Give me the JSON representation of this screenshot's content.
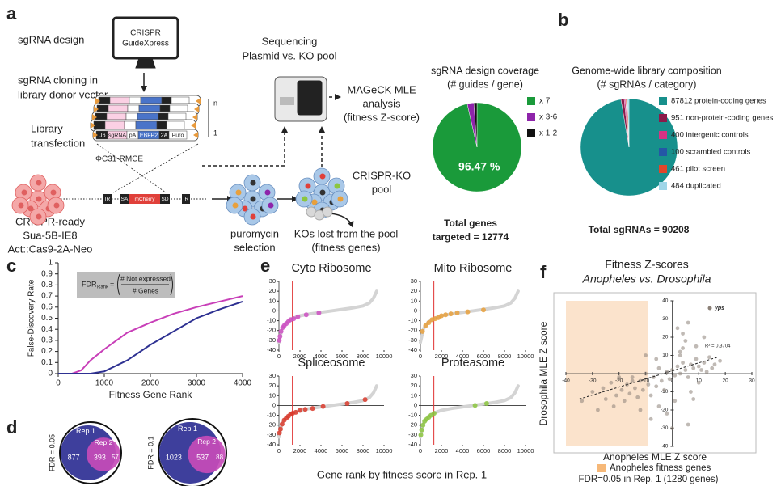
{
  "panel_labels": [
    "a",
    "b",
    "c",
    "d",
    "e",
    "f"
  ],
  "diagram": {
    "design": "sgRNA design",
    "software": [
      "CRISPR",
      "GuideXpress"
    ],
    "cloning": [
      "sgRNA cloning in",
      "library donor vector"
    ],
    "transfection": [
      "Library",
      "transfection"
    ],
    "rmce": "ΦC31-RMCE",
    "cell_line": [
      "CRISPR-ready",
      "Sua-5B-IE8",
      "Act::Cas9-2A-Neo"
    ],
    "selection": [
      "puromycin",
      "selection"
    ],
    "sequencing": [
      "Sequencing",
      "Plasmid vs. KO pool"
    ],
    "analysis": [
      "MAGeCK MLE",
      "analysis",
      "(fitness Z-score)"
    ],
    "pool": [
      "CRISPR-KO",
      "pool"
    ],
    "lost": [
      "KOs lost from the pool",
      "(fitness genes)"
    ],
    "construct": [
      "U6",
      "sgRNA",
      "pA",
      "EBFP2",
      "2A",
      "Puro"
    ],
    "cassette": [
      "IR",
      "SA",
      "mCherry",
      "SD",
      "IR"
    ],
    "copies": [
      "n",
      "1"
    ]
  },
  "chart_data": [
    {
      "type": "pie",
      "title": [
        "sgRNA design coverage",
        "(# guides / gene)"
      ],
      "categories": [
        "x 7",
        "x 3-6",
        "x 1-2"
      ],
      "values": [
        96.47,
        2.4,
        1.13
      ],
      "value_labels": [
        "96.47 %",
        null,
        null
      ],
      "colors": [
        "#1a9a3a",
        "#8e24aa",
        "#111111"
      ],
      "footer": [
        "Total genes",
        "targeted = 12774"
      ]
    },
    {
      "type": "pie",
      "title": [
        "Genome-wide library composition",
        "(# sgRNAs / category)"
      ],
      "categories": [
        "87812 protein-coding genes",
        "951 non-protein-coding genes",
        "400 intergenic controls",
        "100 scrambled controls",
        "461 pilot screen",
        "484 duplicated"
      ],
      "values": [
        87812,
        951,
        400,
        100,
        461,
        484
      ],
      "colors": [
        "#17908c",
        "#8b1a4a",
        "#d63384",
        "#2457a6",
        "#e0462b",
        "#9fd6e8"
      ],
      "footer": "Total sgRNAs = 90208"
    },
    {
      "type": "line",
      "xlabel": "Fitness Gene Rank",
      "ylabel": "False-Discovery Rate",
      "x": [
        0,
        300,
        500,
        700,
        1000,
        1500,
        2000,
        2500,
        3000,
        3500,
        4000
      ],
      "series": [
        {
          "color": "#c83fb8",
          "values": [
            0,
            0,
            0.03,
            0.12,
            0.22,
            0.37,
            0.46,
            0.54,
            0.6,
            0.65,
            0.7
          ]
        },
        {
          "color": "#2e3192",
          "values": [
            0,
            0,
            0,
            0,
            0.02,
            0.12,
            0.26,
            0.38,
            0.5,
            0.58,
            0.65
          ]
        }
      ],
      "xlim": [
        0,
        4000
      ],
      "xticks": [
        0,
        1000,
        2000,
        3000,
        4000
      ],
      "ylim": [
        0,
        1
      ],
      "yticks": [
        0,
        0.1,
        0.2,
        0.3,
        0.4,
        0.5,
        0.6,
        0.7,
        0.8,
        0.9,
        1
      ],
      "formula": {
        "lhs": "FDR",
        "sub": "Rank",
        "eq": "=",
        "num": "# Not expressed",
        "den": "# Genes"
      }
    },
    {
      "type": "scatter",
      "title": "Cyto Ribosome",
      "xlim": [
        0,
        10000
      ],
      "xticks": [
        0,
        2000,
        4000,
        6000,
        8000,
        10000
      ],
      "ylim": [
        -40,
        30
      ],
      "yticks": [
        -40,
        -30,
        -20,
        -10,
        0,
        10,
        20,
        30
      ],
      "background": {
        "color": "#d4d4d4",
        "x": [
          0,
          300,
          700,
          1200,
          2000,
          3000,
          4000,
          5000,
          6000,
          7000,
          8000,
          8600,
          9000,
          9300
        ],
        "y": [
          -32,
          -18,
          -12,
          -8,
          -5,
          -3,
          -1.5,
          0,
          1.5,
          3,
          5,
          8,
          13,
          20
        ]
      },
      "vline": {
        "x": 1280,
        "color": "#e03030"
      },
      "series": [
        {
          "color": "#cc4fc2",
          "x": [
            30,
            100,
            200,
            350,
            500,
            700,
            900,
            1100,
            1400,
            1800,
            2600,
            3800
          ],
          "y": [
            -30,
            -26,
            -21,
            -17,
            -15,
            -13,
            -11,
            -9,
            -8,
            -6,
            -4,
            -2
          ]
        }
      ]
    },
    {
      "type": "scatter",
      "title": "Mito Ribosome",
      "xlim": [
        0,
        10000
      ],
      "xticks": [
        0,
        2000,
        4000,
        6000,
        8000,
        10000
      ],
      "ylim": [
        -40,
        30
      ],
      "yticks": [
        -40,
        -30,
        -20,
        -10,
        0,
        10,
        20,
        30
      ],
      "background": {
        "color": "#d4d4d4",
        "x": [
          0,
          300,
          700,
          1200,
          2000,
          3000,
          4000,
          5000,
          6000,
          7000,
          8000,
          8600,
          9000,
          9300
        ],
        "y": [
          -32,
          -18,
          -12,
          -8,
          -5,
          -3,
          -1.5,
          0,
          1.5,
          3,
          5,
          8,
          13,
          20
        ]
      },
      "vline": {
        "x": 1280,
        "color": "#e03030"
      },
      "series": [
        {
          "color": "#e8a03c",
          "x": [
            200,
            500,
            800,
            1100,
            1400,
            1700,
            2000,
            2400,
            2900,
            3500,
            4500,
            6000
          ],
          "y": [
            -21,
            -15,
            -12,
            -9,
            -8,
            -7,
            -5,
            -4,
            -3,
            -2,
            -1,
            1
          ]
        }
      ]
    },
    {
      "type": "scatter",
      "title": "Spliceosome",
      "xlim": [
        0,
        10000
      ],
      "xticks": [
        0,
        2000,
        4000,
        6000,
        8000,
        10000
      ],
      "ylim": [
        -40,
        30
      ],
      "yticks": [
        -40,
        -30,
        -20,
        -10,
        0,
        10,
        20,
        30
      ],
      "background": {
        "color": "#d4d4d4",
        "x": [
          0,
          300,
          700,
          1200,
          2000,
          3000,
          4000,
          5000,
          6000,
          7000,
          8000,
          8600,
          9000,
          9300
        ],
        "y": [
          -32,
          -18,
          -12,
          -8,
          -5,
          -3,
          -1.5,
          0,
          1.5,
          3,
          5,
          8,
          13,
          20
        ]
      },
      "vline": {
        "x": 1280,
        "color": "#e03030"
      },
      "series": [
        {
          "color": "#d93a2b",
          "x": [
            50,
            150,
            300,
            500,
            700,
            900,
            1100,
            1300,
            1600,
            2000,
            2500,
            3200,
            4200,
            6500,
            8200
          ],
          "y": [
            -28,
            -24,
            -19,
            -15,
            -13,
            -11,
            -9,
            -8,
            -7,
            -5,
            -4,
            -3,
            -1,
            2,
            6
          ]
        }
      ]
    },
    {
      "type": "scatter",
      "title": "Proteasome",
      "xlim": [
        0,
        10000
      ],
      "xticks": [
        0,
        2000,
        4000,
        6000,
        8000,
        10000
      ],
      "ylim": [
        -40,
        30
      ],
      "yticks": [
        -40,
        -30,
        -20,
        -10,
        0,
        10,
        20,
        30
      ],
      "background": {
        "color": "#d4d4d4",
        "x": [
          0,
          300,
          700,
          1200,
          2000,
          3000,
          4000,
          5000,
          6000,
          7000,
          8000,
          8600,
          9000,
          9300
        ],
        "y": [
          -32,
          -18,
          -12,
          -8,
          -5,
          -3,
          -1.5,
          0,
          1.5,
          3,
          5,
          8,
          13,
          20
        ]
      },
      "vline": {
        "x": 1280,
        "color": "#e03030"
      },
      "series": [
        {
          "color": "#8cc63f",
          "x": [
            40,
            120,
            250,
            400,
            600,
            800,
            1000,
            1300,
            5200,
            6300
          ],
          "y": [
            -30,
            -25,
            -20,
            -16,
            -14,
            -12,
            -10,
            -8,
            0,
            2
          ]
        }
      ]
    },
    {
      "type": "scatter",
      "title": [
        "Fitness Z-scores",
        "Anopheles vs. Drosophila"
      ],
      "xlabel": "Anopheles MLE Z score",
      "ylabel": "Drosophila MLE Z score",
      "xlim": [
        -40,
        30
      ],
      "xticks": [
        -40,
        -30,
        -20,
        -10,
        0,
        10,
        20,
        30
      ],
      "ylim": [
        -40,
        40
      ],
      "yticks": [
        -40,
        -30,
        -20,
        -10,
        0,
        10,
        20,
        30,
        40
      ],
      "highlight": {
        "x": [
          -40,
          -9
        ],
        "color": "#fbe3cc",
        "label": "Anopheles fitness genes",
        "note": "FDR=0.05 in Rep. 1 (1280 genes)"
      },
      "trendline": {
        "x": [
          -35,
          17
        ],
        "y": [
          -14,
          9
        ],
        "label": "R² = 0.3704"
      },
      "series": [
        {
          "name": "yps",
          "color": "#8c8178",
          "x": [
            -34,
            -30,
            -28,
            -26,
            -25,
            -23,
            -22,
            -21,
            -20,
            -19,
            -18,
            -17,
            -16,
            -15,
            -14,
            -13,
            -12,
            -11,
            -10,
            -9,
            -8,
            -7,
            -6,
            -5,
            -4,
            -3,
            -2,
            -1,
            0,
            1,
            2,
            3,
            4,
            5,
            6,
            7,
            8,
            9,
            10,
            11,
            12,
            13,
            14,
            15,
            16,
            18,
            -12,
            -8,
            -5,
            -2,
            1,
            3,
            5,
            7,
            9,
            2,
            4,
            6,
            -15,
            -10,
            0,
            4,
            8,
            12,
            -20,
            -6,
            3,
            6,
            10
          ],
          "y": [
            -15,
            -10,
            -20,
            -8,
            -14,
            -5,
            -18,
            -12,
            -3,
            -9,
            -15,
            -6,
            -11,
            -2,
            -8,
            -13,
            -4,
            -9,
            0,
            -6,
            -12,
            -2,
            -7,
            3,
            -4,
            -9,
            1,
            -3,
            2,
            -1,
            4,
            0,
            6,
            2,
            -2,
            5,
            3,
            8,
            4,
            2,
            6,
            1,
            9,
            3,
            5,
            7,
            -20,
            -25,
            -18,
            -22,
            -15,
            12,
            18,
            -10,
            15,
            25,
            22,
            -28,
            -4,
            10,
            -30,
            14,
            -14,
            20,
            -2,
            8,
            10,
            28,
            -5
          ]
        }
      ]
    }
  ],
  "panel_e": {
    "xlabel": "Gene rank by fitness score in Rep. 1"
  },
  "venn": [
    {
      "label": "FDR = 0.05",
      "sets": [
        "Rep 1",
        "Rep 2"
      ],
      "counts": [
        877,
        393,
        57
      ]
    },
    {
      "label": "FDR = 0.1",
      "sets": [
        "Rep 1",
        "Rep 2"
      ],
      "counts": [
        1023,
        537,
        88
      ]
    }
  ]
}
